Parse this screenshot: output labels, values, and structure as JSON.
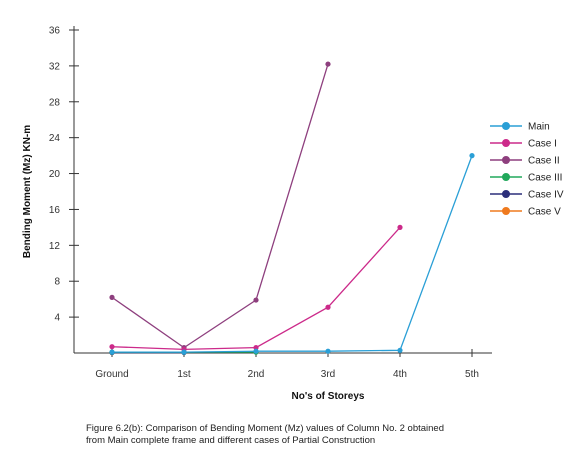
{
  "chart_data": {
    "type": "line",
    "title": "",
    "xlabel": "No's of Storeys",
    "ylabel": "Bending Moment (Mz) KN-m",
    "categories": [
      "Ground",
      "1st",
      "2nd",
      "3rd",
      "4th",
      "5th"
    ],
    "ylim": [
      0,
      36
    ],
    "yticks": [
      4,
      8,
      12,
      16,
      20,
      24,
      28,
      32,
      36
    ],
    "grid": false,
    "legend_position": "right",
    "series": [
      {
        "name": "Main",
        "color": "#2a9fd6",
        "values": [
          0.1,
          0.1,
          0.2,
          0.2,
          0.3,
          22.0
        ]
      },
      {
        "name": "Case I",
        "color": "#cc2a8a",
        "values": [
          0.7,
          0.4,
          0.6,
          5.1,
          14.0,
          null
        ]
      },
      {
        "name": "Case II",
        "color": "#8e3f7e",
        "values": [
          6.2,
          0.6,
          5.9,
          32.2,
          null,
          null
        ]
      },
      {
        "name": "Case III",
        "color": "#21a85b",
        "values": [
          0.1,
          0.1,
          0.1,
          null,
          null,
          null
        ]
      },
      {
        "name": "Case IV",
        "color": "#2c2f7a",
        "values": [
          0.05,
          0.05,
          null,
          null,
          null,
          null
        ]
      },
      {
        "name": "Case V",
        "color": "#ef7a1e",
        "values": [
          0.05,
          null,
          null,
          null,
          null,
          null
        ]
      }
    ]
  },
  "caption": {
    "line1": "Figure 6.2(b): Comparison of Bending Moment (Mz) values of Column No. 2 obtained",
    "line2": "from Main complete frame and different cases of Partial Construction"
  }
}
